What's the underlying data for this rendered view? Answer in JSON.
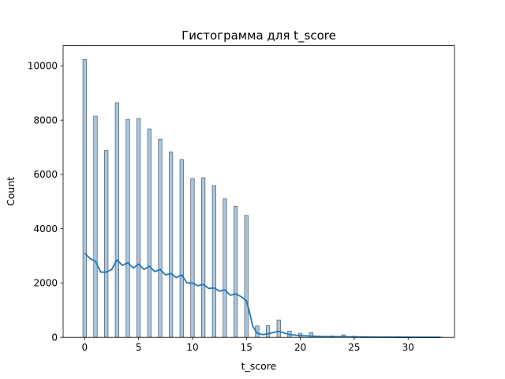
{
  "chart_data": {
    "type": "bar",
    "title": "Гистограмма для t_score",
    "xlabel": "t_score",
    "ylabel": "Count",
    "xlim": [
      -2,
      34.3
    ],
    "ylim": [
      0,
      10750
    ],
    "xticks": [
      0,
      5,
      10,
      15,
      20,
      25,
      30
    ],
    "yticks": [
      0,
      2000,
      4000,
      6000,
      8000,
      10000
    ],
    "bin_width": 0.33,
    "colors": {
      "bar_fill": "#a9c7e0",
      "bar_edge": "#4f5961",
      "kde": "#1f77b4"
    },
    "bars": [
      {
        "x": 0,
        "value": 10230
      },
      {
        "x": 1,
        "value": 8150
      },
      {
        "x": 2,
        "value": 6880
      },
      {
        "x": 3,
        "value": 8640
      },
      {
        "x": 4,
        "value": 8030
      },
      {
        "x": 5,
        "value": 8060
      },
      {
        "x": 6,
        "value": 7680
      },
      {
        "x": 7,
        "value": 7300
      },
      {
        "x": 8,
        "value": 6830
      },
      {
        "x": 9,
        "value": 6550
      },
      {
        "x": 10,
        "value": 5850
      },
      {
        "x": 11,
        "value": 5880
      },
      {
        "x": 12,
        "value": 5590
      },
      {
        "x": 13,
        "value": 5100
      },
      {
        "x": 14,
        "value": 4820
      },
      {
        "x": 15,
        "value": 4490
      },
      {
        "x": 16,
        "value": 420
      },
      {
        "x": 17,
        "value": 430
      },
      {
        "x": 18,
        "value": 640
      },
      {
        "x": 19,
        "value": 230
      },
      {
        "x": 20,
        "value": 150
      },
      {
        "x": 21,
        "value": 180
      },
      {
        "x": 22,
        "value": 30
      },
      {
        "x": 23,
        "value": 50
      },
      {
        "x": 24,
        "value": 90
      },
      {
        "x": 25,
        "value": 40
      },
      {
        "x": 26,
        "value": 30
      },
      {
        "x": 27,
        "value": 20
      },
      {
        "x": 28,
        "value": 20
      },
      {
        "x": 29,
        "value": 20
      },
      {
        "x": 30,
        "value": 15
      },
      {
        "x": 31,
        "value": 10
      },
      {
        "x": 32,
        "value": 8
      },
      {
        "x": 33,
        "value": 5
      }
    ],
    "kde": {
      "x": [
        0,
        0.5,
        1,
        1.5,
        2,
        2.5,
        3,
        3.5,
        4,
        4.5,
        5,
        5.5,
        6,
        6.5,
        7,
        7.5,
        8,
        8.5,
        9,
        9.5,
        10,
        10.5,
        11,
        11.5,
        12,
        12.5,
        13,
        13.5,
        14,
        14.5,
        15,
        15.3,
        15.6,
        16,
        16.5,
        17,
        17.5,
        18,
        18.5,
        19,
        20,
        21,
        22,
        23,
        24,
        25,
        26,
        28,
        30,
        33
      ],
      "y": [
        3100,
        2900,
        2800,
        2400,
        2400,
        2500,
        2850,
        2650,
        2750,
        2550,
        2700,
        2500,
        2620,
        2420,
        2500,
        2300,
        2350,
        2200,
        2300,
        2000,
        2000,
        1900,
        1950,
        1800,
        1820,
        1700,
        1750,
        1550,
        1600,
        1500,
        1350,
        900,
        400,
        150,
        100,
        130,
        180,
        220,
        160,
        100,
        60,
        45,
        30,
        25,
        20,
        15,
        10,
        5,
        3,
        0
      ]
    }
  }
}
